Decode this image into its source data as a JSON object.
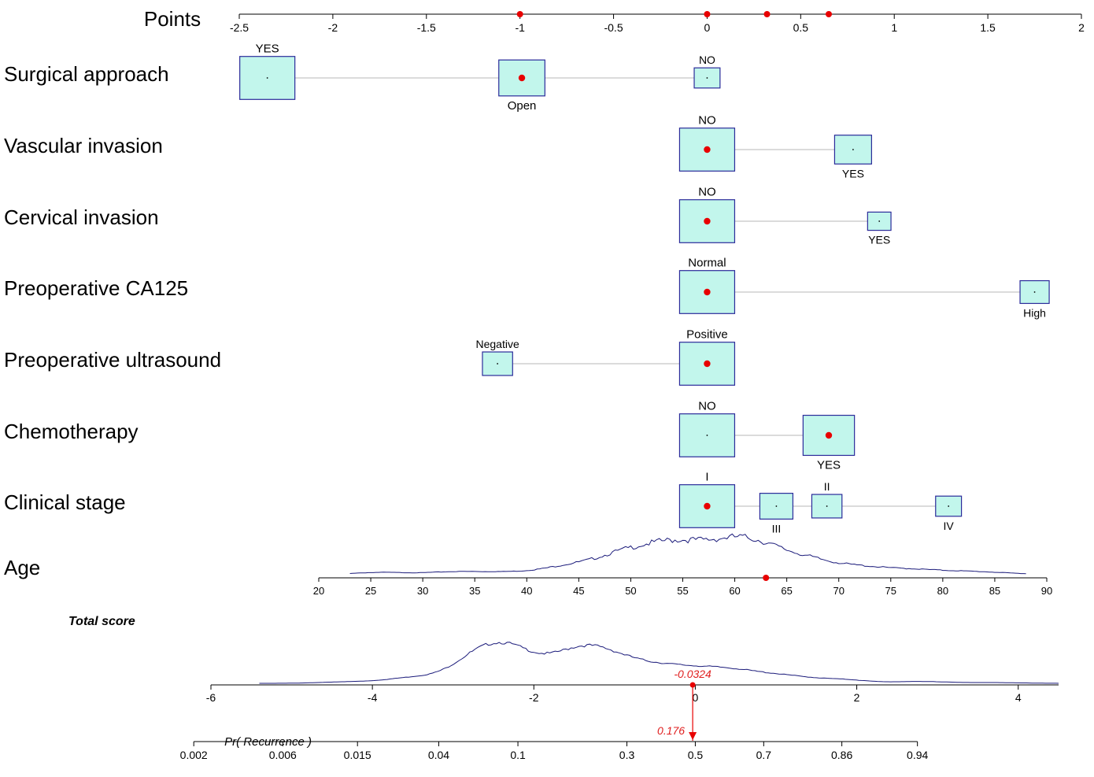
{
  "chart_data": {
    "type": "nomogram",
    "points_axis": {
      "label": "Points",
      "min": -2.5,
      "max": 2,
      "ticks": [
        -2.5,
        -2,
        -1.5,
        -1,
        -0.5,
        0,
        0.5,
        1,
        1.5,
        2
      ],
      "tick_labels": [
        "-2.5",
        "-2",
        "-1.5",
        "-1",
        "-0.5",
        "0",
        "0.5",
        "1",
        "1.5",
        "2"
      ],
      "selected_points": [
        -1,
        0,
        0.32,
        0.65
      ]
    },
    "variables": [
      {
        "name": "Surgical approach",
        "levels": [
          {
            "label": "YES",
            "points": -2.35,
            "weight": 1.0,
            "label_pos": "above"
          },
          {
            "label": "Open",
            "points": -0.99,
            "weight": 0.7,
            "label_pos": "below",
            "selected": true
          },
          {
            "label": "NO",
            "points": 0.0,
            "weight": 0.22,
            "label_pos": "above"
          }
        ]
      },
      {
        "name": "Vascular invasion",
        "levels": [
          {
            "label": "NO",
            "points": 0.0,
            "weight": 1.0,
            "label_pos": "above",
            "selected": true
          },
          {
            "label": "YES",
            "points": 0.78,
            "weight": 0.45,
            "label_pos": "below"
          }
        ]
      },
      {
        "name": "Cervical invasion",
        "levels": [
          {
            "label": "NO",
            "points": 0.0,
            "weight": 1.0,
            "label_pos": "above",
            "selected": true
          },
          {
            "label": "YES",
            "points": 0.92,
            "weight": 0.18,
            "label_pos": "below"
          }
        ]
      },
      {
        "name": "Preoperative CA125",
        "levels": [
          {
            "label": "Normal",
            "points": 0.0,
            "weight": 1.0,
            "label_pos": "above",
            "selected": true
          },
          {
            "label": "High",
            "points": 1.75,
            "weight": 0.28,
            "label_pos": "below"
          }
        ]
      },
      {
        "name": "Preoperative ultrasound",
        "levels": [
          {
            "label": "Negative",
            "points": -1.12,
            "weight": 0.3,
            "label_pos": "above"
          },
          {
            "label": "Positive",
            "points": 0.0,
            "weight": 1.0,
            "label_pos": "above",
            "selected": true
          }
        ]
      },
      {
        "name": "Chemotherapy",
        "levels": [
          {
            "label": "NO",
            "points": 0.0,
            "weight": 1.0,
            "label_pos": "above"
          },
          {
            "label": "YES",
            "points": 0.65,
            "weight": 0.87,
            "label_pos": "below",
            "selected": true
          }
        ]
      },
      {
        "name": "Clinical stage",
        "levels": [
          {
            "label": "I",
            "points": 0.0,
            "weight": 1.0,
            "label_pos": "above",
            "selected": true
          },
          {
            "label": "III",
            "points": 0.37,
            "weight": 0.36,
            "label_pos": "below"
          },
          {
            "label": "II",
            "points": 0.64,
            "weight": 0.3,
            "label_pos": "above"
          },
          {
            "label": "IV",
            "points": 1.29,
            "weight": 0.22,
            "label_pos": "below"
          }
        ]
      }
    ],
    "age": {
      "name": "Age",
      "min": 20,
      "max": 90,
      "ticks": [
        20,
        25,
        30,
        35,
        40,
        45,
        50,
        55,
        60,
        65,
        70,
        75,
        80,
        85,
        90
      ],
      "selected_value": 63,
      "density_range": [
        23,
        88
      ]
    },
    "total_score": {
      "label": "Total score",
      "min": -6,
      "max": 4.5,
      "ticks": [
        -6,
        -4,
        -2,
        0,
        2,
        4
      ],
      "tick_labels": [
        "-6",
        "-4",
        "-2",
        "0",
        "2",
        "4"
      ],
      "selected_value": -0.0324,
      "selected_label": "-0.0324",
      "density_range": [
        -5.4,
        4.5
      ]
    },
    "probability": {
      "label": "Pr( Recurrence )",
      "ticks": [
        0.002,
        0.006,
        0.015,
        0.04,
        0.1,
        0.3,
        0.5,
        0.7,
        0.86,
        0.94
      ],
      "tick_labels": [
        "0.002",
        "0.006",
        "0.015",
        "0.04",
        "0.1",
        "0.3",
        "0.5",
        "0.7",
        "0.86",
        "0.94"
      ],
      "selected_value": 0.176,
      "selected_label": "0.176"
    },
    "colors": {
      "box_fill": "#c2f6ec",
      "box_stroke": "#2b2b9a",
      "marker": "#e80000",
      "line": "#cfcfcf",
      "axis": "#000000",
      "density": "#1a1a7a",
      "annotation": "#e02020"
    }
  }
}
